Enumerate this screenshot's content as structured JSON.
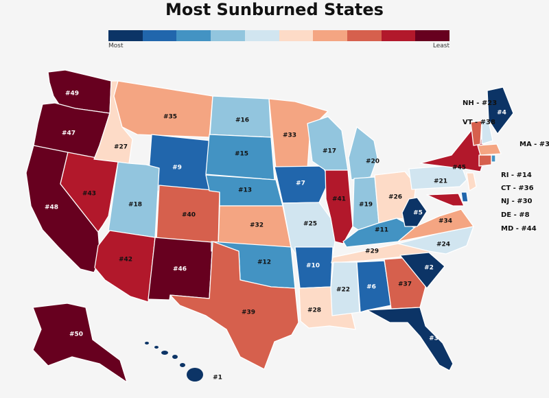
{
  "title": "Most Sunburned States",
  "legend": {
    "low_label": "Most",
    "high_label": "Least",
    "colors": [
      "#0c3466",
      "#2166ac",
      "#4393c3",
      "#92c5de",
      "#d1e5f0",
      "#fddbc7",
      "#f4a582",
      "#d6604d",
      "#b2182b",
      "#67001f"
    ]
  },
  "states": [
    {
      "code": "WA",
      "rank": "#49",
      "color": "#67001f"
    },
    {
      "code": "OR",
      "rank": "#47",
      "color": "#67001f"
    },
    {
      "code": "CA",
      "rank": "#48",
      "color": "#67001f"
    },
    {
      "code": "NV",
      "rank": "#43",
      "color": "#b2182b"
    },
    {
      "code": "ID",
      "rank": "#27",
      "color": "#fddbc7"
    },
    {
      "code": "MT",
      "rank": "#35",
      "color": "#f4a582"
    },
    {
      "code": "WY",
      "rank": "#9",
      "color": "#2166ac"
    },
    {
      "code": "UT",
      "rank": "#18",
      "color": "#92c5de"
    },
    {
      "code": "AZ",
      "rank": "#42",
      "color": "#b2182b"
    },
    {
      "code": "CO",
      "rank": "#40",
      "color": "#d6604d"
    },
    {
      "code": "NM",
      "rank": "#46",
      "color": "#67001f"
    },
    {
      "code": "ND",
      "rank": "#16",
      "color": "#92c5de"
    },
    {
      "code": "SD",
      "rank": "#15",
      "color": "#4393c3"
    },
    {
      "code": "NE",
      "rank": "#13",
      "color": "#4393c3"
    },
    {
      "code": "KS",
      "rank": "#32",
      "color": "#f4a582"
    },
    {
      "code": "OK",
      "rank": "#12",
      "color": "#4393c3"
    },
    {
      "code": "TX",
      "rank": "#39",
      "color": "#d6604d"
    },
    {
      "code": "MN",
      "rank": "#33",
      "color": "#f4a582"
    },
    {
      "code": "IA",
      "rank": "#7",
      "color": "#2166ac"
    },
    {
      "code": "MO",
      "rank": "#25",
      "color": "#d1e5f0"
    },
    {
      "code": "AR",
      "rank": "#10",
      "color": "#2166ac"
    },
    {
      "code": "LA",
      "rank": "#28",
      "color": "#fddbc7"
    },
    {
      "code": "WI",
      "rank": "#17",
      "color": "#92c5de"
    },
    {
      "code": "IL",
      "rank": "#41",
      "color": "#b2182b"
    },
    {
      "code": "MI",
      "rank": "#20",
      "color": "#92c5de"
    },
    {
      "code": "IN",
      "rank": "#19",
      "color": "#92c5de"
    },
    {
      "code": "OH",
      "rank": "#26",
      "color": "#fddbc7"
    },
    {
      "code": "KY",
      "rank": "#11",
      "color": "#4393c3"
    },
    {
      "code": "TN",
      "rank": "#29",
      "color": "#fddbc7"
    },
    {
      "code": "MS",
      "rank": "#22",
      "color": "#d1e5f0"
    },
    {
      "code": "AL",
      "rank": "#6",
      "color": "#2166ac"
    },
    {
      "code": "GA",
      "rank": "#37",
      "color": "#d6604d"
    },
    {
      "code": "FL",
      "rank": "#3",
      "color": "#0c3466"
    },
    {
      "code": "SC",
      "rank": "#2",
      "color": "#0c3466"
    },
    {
      "code": "NC",
      "rank": "#24",
      "color": "#d1e5f0"
    },
    {
      "code": "VA",
      "rank": "#34",
      "color": "#f4a582"
    },
    {
      "code": "WV",
      "rank": "#5",
      "color": "#0c3466"
    },
    {
      "code": "PA",
      "rank": "#21",
      "color": "#d1e5f0"
    },
    {
      "code": "NY",
      "rank": "#45",
      "color": "#b2182b"
    },
    {
      "code": "ME",
      "rank": "#4",
      "color": "#0c3466"
    },
    {
      "code": "AK",
      "rank": "#50",
      "color": "#67001f"
    },
    {
      "code": "HI",
      "rank": "#1",
      "color": "#0c3466"
    },
    {
      "code": "VT",
      "rank": "#38",
      "color": "#d6604d"
    },
    {
      "code": "NH",
      "rank": "#23",
      "color": "#d1e5f0"
    },
    {
      "code": "MA",
      "rank": "#31",
      "color": "#f4a582"
    },
    {
      "code": "RI",
      "rank": "#14",
      "color": "#4393c3"
    },
    {
      "code": "CT",
      "rank": "#36",
      "color": "#d6604d"
    },
    {
      "code": "NJ",
      "rank": "#30",
      "color": "#fddbc7"
    },
    {
      "code": "DE",
      "rank": "#8",
      "color": "#2166ac"
    },
    {
      "code": "MD",
      "rank": "#44",
      "color": "#b2182b"
    }
  ],
  "callouts": [
    {
      "code": "NH",
      "text": "NH - #23"
    },
    {
      "code": "VT",
      "text": "VT - #38"
    },
    {
      "code": "MA",
      "text": "MA - #31"
    },
    {
      "code": "RI",
      "text": "RI - #14"
    },
    {
      "code": "CT",
      "text": "CT - #36"
    },
    {
      "code": "NJ",
      "text": "NJ - #30"
    },
    {
      "code": "DE",
      "text": "DE - #8"
    },
    {
      "code": "MD",
      "text": "MD - #44"
    }
  ]
}
